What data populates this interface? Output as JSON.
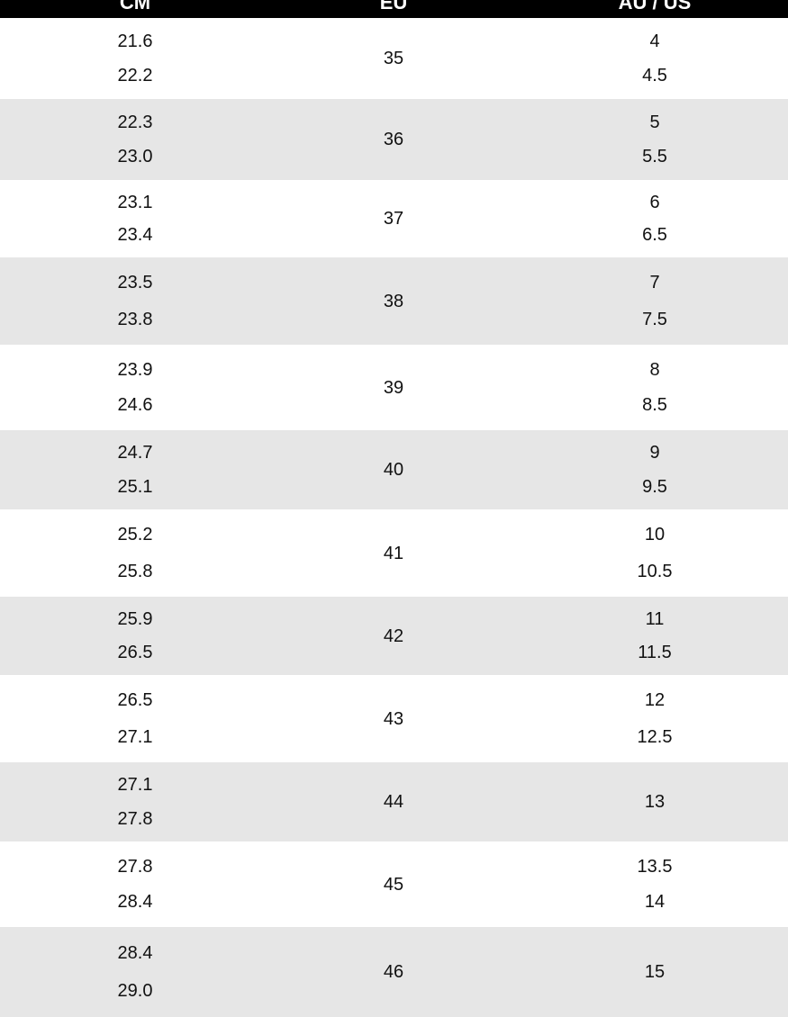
{
  "header": {
    "columns": [
      "CM",
      "EU",
      "AU / US"
    ]
  },
  "table": {
    "rows": [
      {
        "cm": [
          "21.6",
          "22.2"
        ],
        "eu": "35",
        "us": [
          "4",
          "4.5"
        ]
      },
      {
        "cm": [
          "22.3",
          "23.0"
        ],
        "eu": "36",
        "us": [
          "5",
          "5.5"
        ]
      },
      {
        "cm": [
          "23.1",
          "23.4"
        ],
        "eu": "37",
        "us": [
          "6",
          "6.5"
        ]
      },
      {
        "cm": [
          "23.5",
          "23.8"
        ],
        "eu": "38",
        "us": [
          "7",
          "7.5"
        ]
      },
      {
        "cm": [
          "23.9",
          "24.6"
        ],
        "eu": "39",
        "us": [
          "8",
          "8.5"
        ]
      },
      {
        "cm": [
          "24.7",
          "25.1"
        ],
        "eu": "40",
        "us": [
          "9",
          "9.5"
        ]
      },
      {
        "cm": [
          "25.2",
          "25.8"
        ],
        "eu": "41",
        "us": [
          "10",
          "10.5"
        ]
      },
      {
        "cm": [
          "25.9",
          "26.5"
        ],
        "eu": "42",
        "us": [
          "11",
          "11.5"
        ]
      },
      {
        "cm": [
          "26.5",
          "27.1"
        ],
        "eu": "43",
        "us": [
          "12",
          "12.5"
        ]
      },
      {
        "cm": [
          "27.1",
          "27.8"
        ],
        "eu": "44",
        "us": [
          "13"
        ]
      },
      {
        "cm": [
          "27.8",
          "28.4"
        ],
        "eu": "45",
        "us": [
          "13.5",
          "14"
        ]
      },
      {
        "cm": [
          "28.4",
          "29.0"
        ],
        "eu": "46",
        "us": [
          "15"
        ]
      }
    ]
  }
}
